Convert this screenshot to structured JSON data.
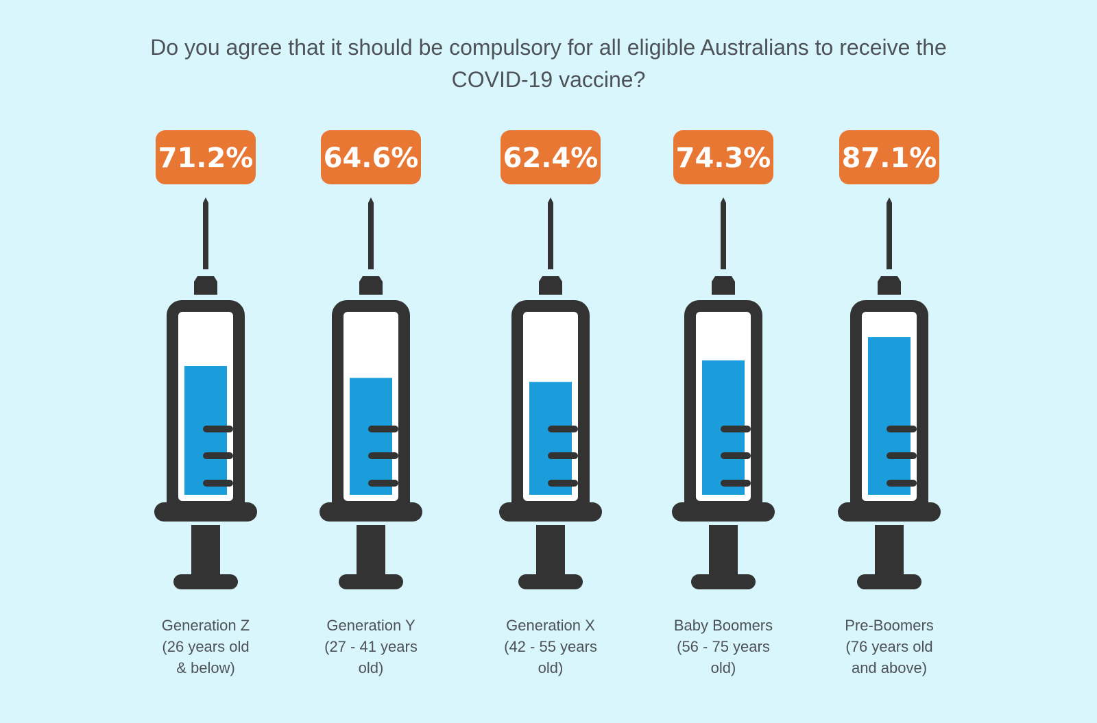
{
  "title": "Do you agree that it should be compulsory for all eligible Australians to receive the COVID-19 vaccine?",
  "colors": {
    "background": "#d9f6fd",
    "syringe": "#333333",
    "fill": "#1b9ddc",
    "badge": "#e87734",
    "text": "#4d5257"
  },
  "chart_data": {
    "type": "bar",
    "title": "Do you agree that it should be compulsory for all eligible Australians to receive the COVID-19 vaccine?",
    "categories": [
      [
        "Generation Z",
        "(26 years old",
        "& below)"
      ],
      [
        "Generation Y",
        "(27 - 41 years",
        "old)"
      ],
      [
        "Generation X",
        "(42 - 55 years",
        "old)"
      ],
      [
        "Baby Boomers",
        "(56 - 75 years",
        "old)"
      ],
      [
        "Pre-Boomers",
        "(76 years old",
        "and above)"
      ]
    ],
    "values": [
      71.2,
      64.6,
      62.4,
      74.3,
      87.1
    ],
    "value_labels": [
      "71.2%",
      "64.6%",
      "62.4%",
      "74.3%",
      "87.1%"
    ],
    "ylim": [
      0,
      100
    ],
    "unit": "%"
  }
}
